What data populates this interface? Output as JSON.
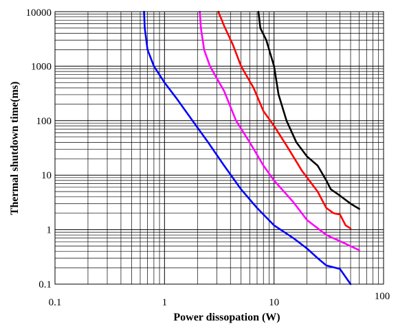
{
  "chart_data": {
    "type": "line",
    "xlabel": "Power dissopation (W)",
    "ylabel": "Thermal shutdown time(ms)",
    "x_scale": "log",
    "y_scale": "log",
    "xlim": [
      0.1,
      100
    ],
    "ylim": [
      0.1,
      10000
    ],
    "grid": true,
    "x_ticks": [
      "0.1",
      "1",
      "10",
      "100"
    ],
    "y_ticks": [
      "0.1",
      "1",
      "10",
      "100",
      "1000",
      "10000"
    ],
    "series": [
      {
        "color": "#0000ff",
        "points": [
          [
            0.65,
            10000
          ],
          [
            0.66,
            5000
          ],
          [
            0.7,
            2000
          ],
          [
            0.8,
            1000
          ],
          [
            1.0,
            500
          ],
          [
            1.3,
            250
          ],
          [
            1.8,
            100
          ],
          [
            2.5,
            40
          ],
          [
            3.5,
            15
          ],
          [
            5,
            5.5
          ],
          [
            7,
            2.5
          ],
          [
            10,
            1.2
          ],
          [
            15,
            0.7
          ],
          [
            20,
            0.45
          ],
          [
            25,
            0.3
          ],
          [
            30,
            0.22
          ],
          [
            40,
            0.19
          ],
          [
            50,
            0.1
          ]
        ]
      },
      {
        "color": "#ff00ff",
        "points": [
          [
            2.1,
            10000
          ],
          [
            2.15,
            5000
          ],
          [
            2.3,
            2000
          ],
          [
            2.6,
            1000
          ],
          [
            3.0,
            600
          ],
          [
            3.5,
            350
          ],
          [
            4.5,
            100
          ],
          [
            6,
            40
          ],
          [
            8,
            15
          ],
          [
            10,
            8
          ],
          [
            15,
            3.2
          ],
          [
            20,
            1.5
          ],
          [
            30,
            0.8
          ],
          [
            45,
            0.55
          ],
          [
            60,
            0.42
          ]
        ]
      },
      {
        "color": "#ff0000",
        "points": [
          [
            3.1,
            10000
          ],
          [
            3.5,
            5500
          ],
          [
            4.2,
            2500
          ],
          [
            5,
            1000
          ],
          [
            6.5,
            400
          ],
          [
            8,
            150
          ],
          [
            10,
            80
          ],
          [
            13,
            35
          ],
          [
            18,
            12
          ],
          [
            25,
            5
          ],
          [
            30,
            2.5
          ],
          [
            35,
            2.0
          ],
          [
            40,
            1.9
          ],
          [
            45,
            1.2
          ],
          [
            50,
            1.05
          ]
        ]
      },
      {
        "color": "#000000",
        "points": [
          [
            7.2,
            10000
          ],
          [
            7.5,
            5000
          ],
          [
            8.5,
            3000
          ],
          [
            10,
            1000
          ],
          [
            11,
            300
          ],
          [
            13,
            100
          ],
          [
            16,
            40
          ],
          [
            20,
            22
          ],
          [
            25,
            15
          ],
          [
            30,
            8
          ],
          [
            33,
            5.5
          ],
          [
            40,
            4.2
          ],
          [
            50,
            3.0
          ],
          [
            60,
            2.4
          ]
        ]
      }
    ]
  }
}
